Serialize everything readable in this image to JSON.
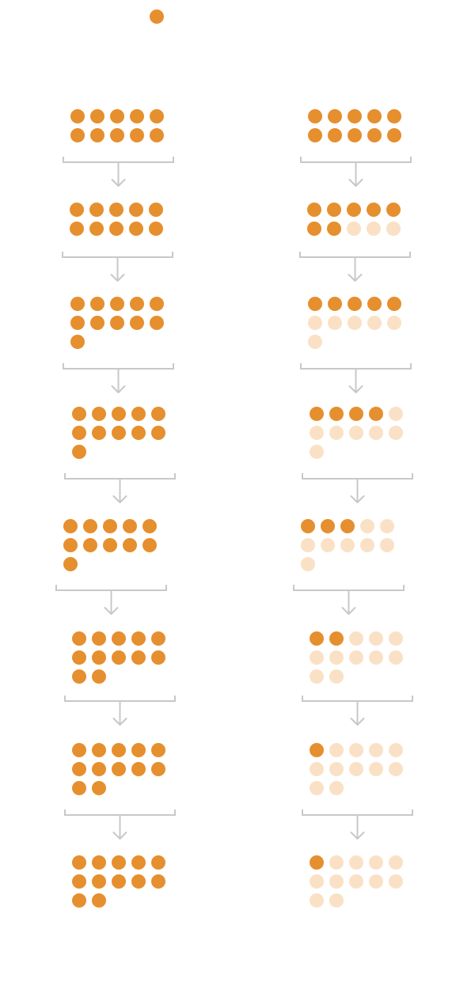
{
  "colors": {
    "filled": "#E68F2E",
    "faded": "#FAE1C6",
    "connector": "#C8C8C8",
    "background": "#FFFFFF"
  },
  "legend": {
    "icon": "dot-icon"
  },
  "diagram": {
    "columns": [
      {
        "name": "left",
        "stages": [
          {
            "total": 10,
            "filled": 10
          },
          {
            "total": 10,
            "filled": 10
          },
          {
            "total": 11,
            "filled": 11
          },
          {
            "total": 11,
            "filled": 11
          },
          {
            "total": 11,
            "filled": 11
          },
          {
            "total": 12,
            "filled": 12
          },
          {
            "total": 12,
            "filled": 12
          },
          {
            "total": 12,
            "filled": 12
          }
        ]
      },
      {
        "name": "right",
        "stages": [
          {
            "total": 10,
            "filled": 10
          },
          {
            "total": 10,
            "filled": 7
          },
          {
            "total": 11,
            "filled": 5
          },
          {
            "total": 11,
            "filled": 4
          },
          {
            "total": 11,
            "filled": 3
          },
          {
            "total": 12,
            "filled": 2
          },
          {
            "total": 12,
            "filled": 1
          },
          {
            "total": 12,
            "filled": 1
          }
        ]
      }
    ]
  }
}
